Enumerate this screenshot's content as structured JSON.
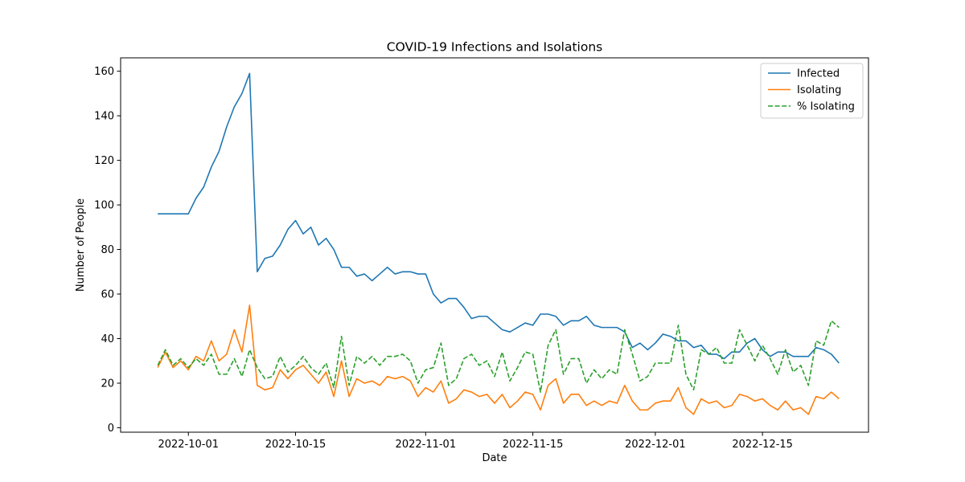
{
  "chart_data": {
    "type": "line",
    "title": "COVID-19 Infections and Isolations",
    "xlabel": "Date",
    "ylabel": "Number of People",
    "x_start": "2022-09-27",
    "x_end": "2022-12-24",
    "x_ticks": [
      "2022-10-01",
      "2022-10-15",
      "2022-11-01",
      "2022-11-15",
      "2022-12-01",
      "2022-12-15"
    ],
    "ylim": [
      -2,
      166
    ],
    "y_ticks": [
      0,
      20,
      40,
      60,
      80,
      100,
      120,
      140,
      160
    ],
    "grid": false,
    "legend_position": "top-right",
    "series": [
      {
        "name": "Infected",
        "color": "#1f77b4",
        "dash": "solid",
        "values": [
          96,
          96,
          96,
          96,
          96,
          103,
          108,
          117,
          124,
          135,
          144,
          150,
          159,
          70,
          76,
          77,
          82,
          89,
          93,
          87,
          90,
          82,
          85,
          80,
          72,
          72,
          68,
          69,
          66,
          69,
          72,
          69,
          70,
          70,
          69,
          69,
          60,
          56,
          58,
          58,
          54,
          49,
          50,
          50,
          47,
          44,
          43,
          45,
          47,
          46,
          51,
          51,
          50,
          46,
          48,
          48,
          50,
          46,
          45,
          45,
          45,
          43,
          36,
          38,
          35,
          38,
          42,
          41,
          39,
          39,
          36,
          37,
          33,
          33,
          31,
          34,
          34,
          38,
          40,
          35,
          32,
          34,
          34,
          32,
          32,
          32,
          36,
          35,
          33,
          29
        ]
      },
      {
        "name": "Isolating",
        "color": "#ff7f0e",
        "dash": "solid",
        "values": [
          27,
          34,
          27,
          30,
          26,
          32,
          30,
          39,
          30,
          33,
          44,
          34,
          55,
          19,
          17,
          18,
          26,
          22,
          26,
          28,
          24,
          20,
          25,
          14,
          30,
          14,
          22,
          20,
          21,
          19,
          23,
          22,
          23,
          21,
          14,
          18,
          16,
          21,
          11,
          13,
          17,
          16,
          14,
          15,
          11,
          15,
          9,
          12,
          16,
          15,
          8,
          19,
          22,
          11,
          15,
          15,
          10,
          12,
          10,
          12,
          11,
          19,
          12,
          8,
          8,
          11,
          12,
          12,
          18,
          9,
          6,
          13,
          11,
          12,
          9,
          10,
          15,
          14,
          12,
          13,
          10,
          8,
          12,
          8,
          9,
          6,
          14,
          13,
          16,
          13
        ]
      },
      {
        "name": "% Isolating",
        "color": "#2ca02c",
        "dash": "dashed",
        "values": [
          28,
          35,
          28,
          31,
          27,
          31,
          28,
          33,
          24,
          24,
          31,
          23,
          35,
          27,
          22,
          23,
          32,
          25,
          28,
          32,
          27,
          24,
          29,
          18,
          41,
          19,
          32,
          29,
          32,
          28,
          32,
          32,
          33,
          30,
          20,
          26,
          27,
          38,
          19,
          22,
          31,
          33,
          28,
          30,
          23,
          34,
          21,
          27,
          34,
          33,
          16,
          37,
          44,
          24,
          31,
          31,
          20,
          26,
          22,
          26,
          24,
          44,
          33,
          21,
          23,
          29,
          29,
          29,
          46,
          24,
          17,
          35,
          33,
          36,
          29,
          29,
          44,
          37,
          30,
          37,
          31,
          24,
          35,
          25,
          28,
          19,
          39,
          37,
          48,
          45
        ]
      }
    ]
  }
}
